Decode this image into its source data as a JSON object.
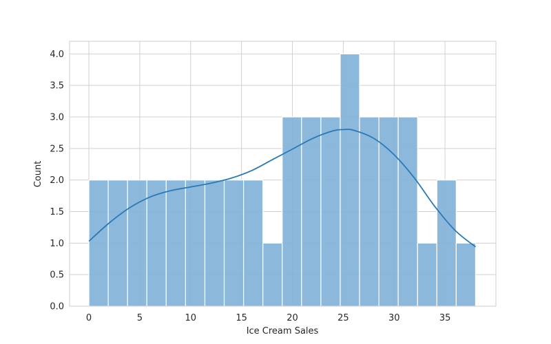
{
  "chart_data": {
    "type": "bar",
    "subtype": "histogram-with-kde",
    "xlabel": "Ice Cream Sales",
    "ylabel": "Count",
    "xlim": [
      -1.9,
      40.0
    ],
    "ylim": [
      0,
      4.2
    ],
    "xticks": [
      0,
      5,
      10,
      15,
      20,
      25,
      30,
      35
    ],
    "yticks": [
      0.0,
      0.5,
      1.0,
      1.5,
      2.0,
      2.5,
      3.0,
      3.5,
      4.0
    ],
    "xtick_labels": [
      "0",
      "5",
      "10",
      "15",
      "20",
      "25",
      "30",
      "35"
    ],
    "ytick_labels": [
      "0.0",
      "0.5",
      "1.0",
      "1.5",
      "2.0",
      "2.5",
      "3.0",
      "3.5",
      "4.0"
    ],
    "grid": true,
    "bins": {
      "edges": [
        0.0,
        1.9,
        3.8,
        5.7,
        7.6,
        9.5,
        11.4,
        13.3,
        15.2,
        17.1,
        19.0,
        20.9,
        22.8,
        24.7,
        26.6,
        28.5,
        30.4,
        32.3,
        34.2,
        36.1,
        38.0
      ],
      "counts": [
        2,
        2,
        2,
        2,
        2,
        2,
        2,
        2,
        2,
        1,
        3,
        3,
        3,
        4,
        3,
        3,
        3,
        1,
        2,
        1
      ]
    },
    "kde": {
      "x": [
        0,
        2,
        4,
        6,
        8,
        10,
        12,
        14,
        16,
        18,
        20,
        22,
        24,
        25,
        26,
        28,
        30,
        32,
        34,
        36,
        38
      ],
      "y": [
        1.03,
        1.32,
        1.56,
        1.73,
        1.83,
        1.89,
        1.95,
        2.03,
        2.15,
        2.32,
        2.49,
        2.66,
        2.78,
        2.8,
        2.79,
        2.66,
        2.4,
        2.03,
        1.58,
        1.2,
        0.94
      ]
    },
    "colors": {
      "bar_fill": "#7fb1d7",
      "bar_edge": "#ffffff",
      "kde_line": "#2a78b4",
      "grid": "#d0d0d0",
      "spine": "#cccccc",
      "text": "#262626"
    }
  }
}
